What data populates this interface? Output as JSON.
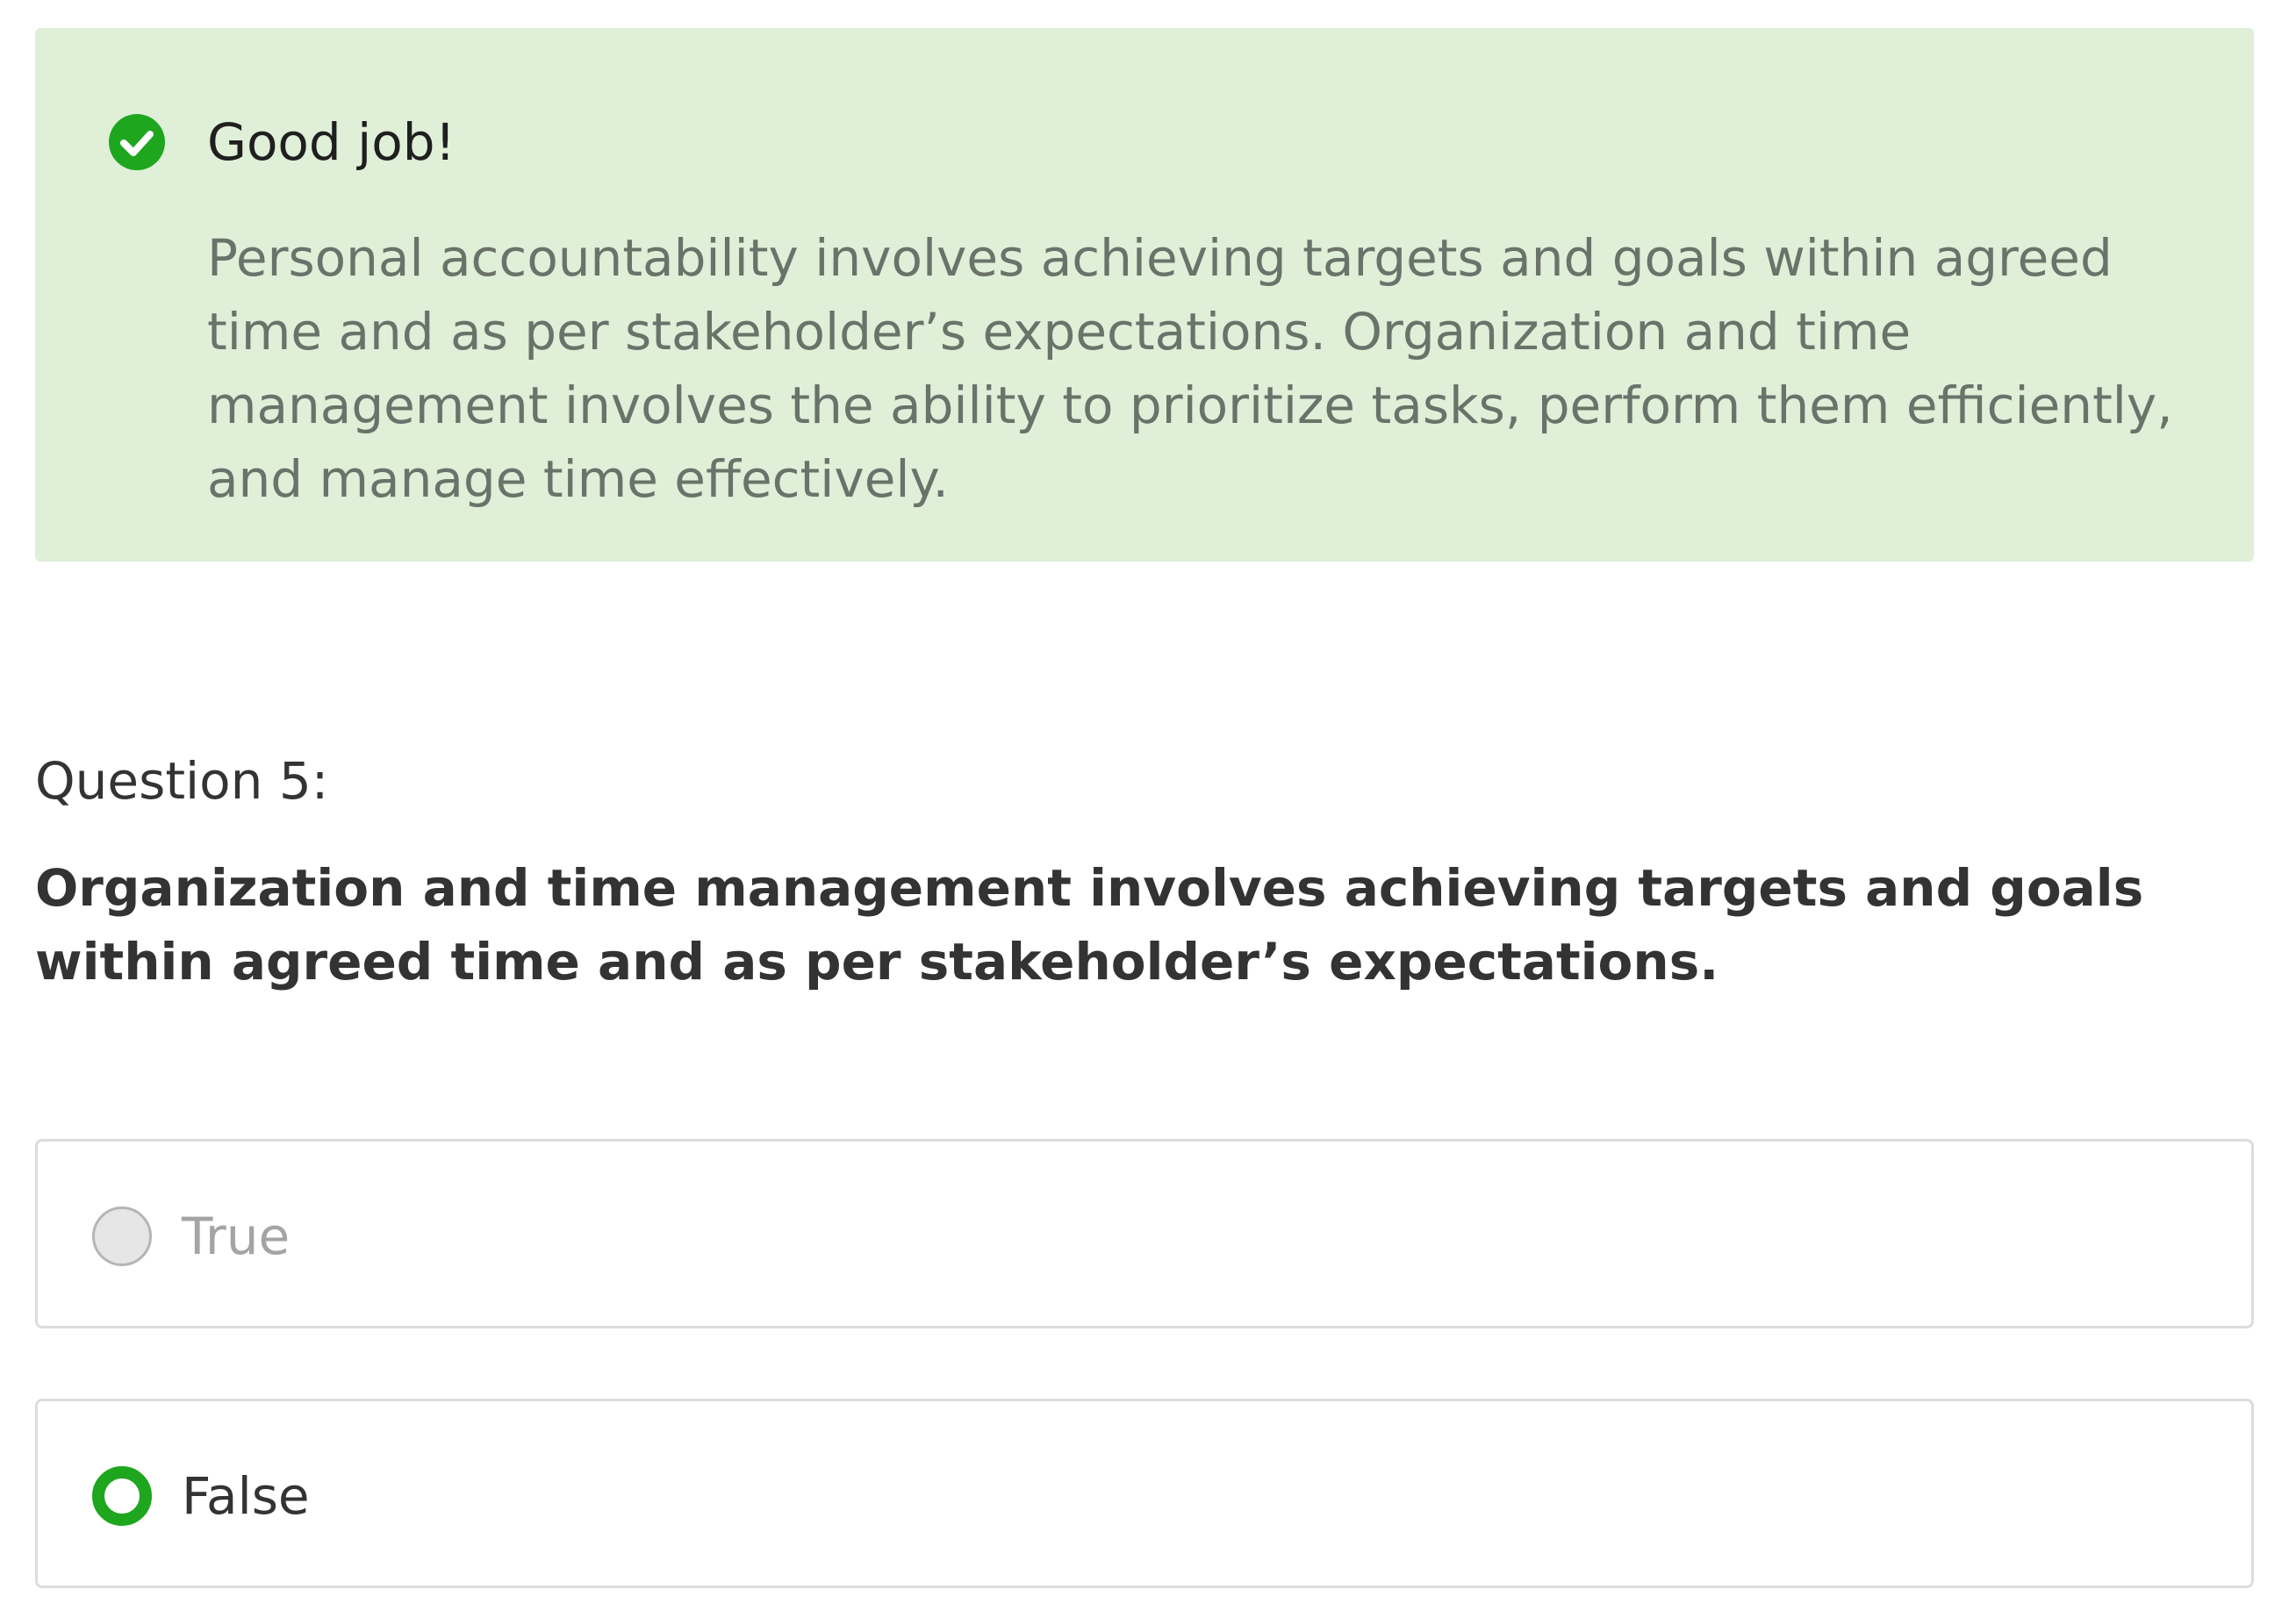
{
  "feedback": {
    "icon": "check-circle-icon",
    "title": "Good job!",
    "text": "Personal accountability involves achieving targets and goals within agreed time and as per stakeholder’s expectations. Organization and time management involves the ability to prioritize tasks, perform them efficiently, and manage time effectively.",
    "background_color": "#dfefd8",
    "accent_color": "#1ea61e"
  },
  "question": {
    "label": "Question 5:",
    "text": "Organization and time management involves achieving targets and goals within agreed time and as per stakeholder’s expectations."
  },
  "options": [
    {
      "label": "True",
      "selected": false
    },
    {
      "label": "False",
      "selected": true
    }
  ]
}
